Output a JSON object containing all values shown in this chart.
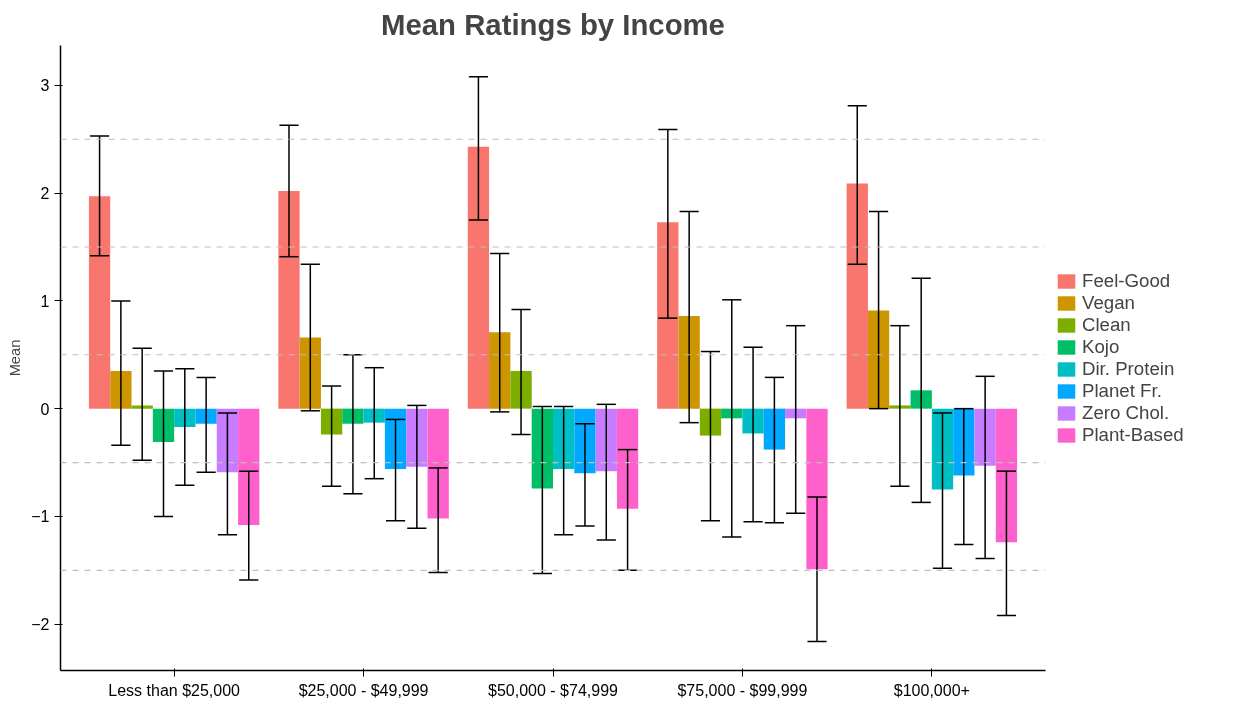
{
  "chart_data": {
    "type": "bar",
    "title": "Mean Ratings by Income",
    "ylabel": "Mean",
    "categories": [
      "Less than $25,000",
      "$25,000 - $49,999",
      "$50,000 - $74,999",
      "$75,000 - $99,999",
      "$100,000+"
    ],
    "ylim": [
      -2.43,
      3.37
    ],
    "yticks": [
      -2,
      -1,
      0,
      1,
      2,
      3
    ],
    "grid": false,
    "legend": "right",
    "ref_lines": [
      {
        "axis": "y",
        "value": -1.5,
        "color": "#bebebe",
        "line_style": "dashed"
      },
      {
        "axis": "y",
        "value": -0.5,
        "color": "#bebebe",
        "line_style": "dashed"
      },
      {
        "axis": "y",
        "value": 0.5,
        "color": "#bebebe",
        "line_style": "dashed"
      },
      {
        "axis": "y",
        "value": 1.5,
        "color": "#bebebe",
        "line_style": "dashed"
      },
      {
        "axis": "y",
        "value": 2.5,
        "color": "#bebebe",
        "line_style": "dashed"
      }
    ],
    "series": [
      {
        "name": "Feel-Good",
        "color": "#f8766d",
        "values": [
          1.97,
          2.02,
          2.43,
          1.73,
          2.09
        ],
        "errors": [
          [
            1.42,
            2.53
          ],
          [
            1.41,
            2.63
          ],
          [
            1.75,
            3.08
          ],
          [
            0.84,
            2.59
          ],
          [
            1.34,
            2.81
          ]
        ]
      },
      {
        "name": "Vegan",
        "color": "#cd9600",
        "values": [
          0.35,
          0.66,
          0.71,
          0.86,
          0.91
        ],
        "errors": [
          [
            -0.34,
            1.0
          ],
          [
            -0.02,
            1.34
          ],
          [
            -0.03,
            1.44
          ],
          [
            -0.13,
            1.83
          ],
          [
            0.0,
            1.83
          ]
        ]
      },
      {
        "name": "Clean",
        "color": "#7cae00",
        "values": [
          0.03,
          -0.24,
          0.35,
          -0.25,
          0.03
        ],
        "errors": [
          [
            -0.48,
            0.56
          ],
          [
            -0.72,
            0.21
          ],
          [
            -0.24,
            0.92
          ],
          [
            -1.04,
            0.53
          ],
          [
            -0.72,
            0.77
          ]
        ]
      },
      {
        "name": "Kojo",
        "color": "#00be67",
        "values": [
          -0.31,
          -0.14,
          -0.74,
          -0.09,
          0.17
        ],
        "errors": [
          [
            -1.0,
            0.35
          ],
          [
            -0.79,
            0.5
          ],
          [
            -1.53,
            0.02
          ],
          [
            -1.19,
            1.01
          ],
          [
            -0.87,
            1.21
          ]
        ]
      },
      {
        "name": "Dir. Protein",
        "color": "#00bfc4",
        "values": [
          -0.17,
          -0.13,
          -0.56,
          -0.23,
          -0.75
        ],
        "errors": [
          [
            -0.71,
            0.37
          ],
          [
            -0.65,
            0.38
          ],
          [
            -1.17,
            0.02
          ],
          [
            -1.05,
            0.57
          ],
          [
            -1.48,
            -0.04
          ]
        ]
      },
      {
        "name": "Planet Fr.",
        "color": "#00a9ff",
        "values": [
          -0.14,
          -0.56,
          -0.6,
          -0.38,
          -0.62
        ],
        "errors": [
          [
            -0.59,
            0.29
          ],
          [
            -1.04,
            -0.1
          ],
          [
            -1.09,
            -0.14
          ],
          [
            -1.06,
            0.29
          ],
          [
            -1.26,
            0.0
          ]
        ]
      },
      {
        "name": "Zero Chol.",
        "color": "#c77cff",
        "values": [
          -0.59,
          -0.54,
          -0.58,
          -0.09,
          -0.53
        ],
        "errors": [
          [
            -1.17,
            -0.04
          ],
          [
            -1.11,
            0.03
          ],
          [
            -1.22,
            0.04
          ],
          [
            -0.97,
            0.77
          ],
          [
            -1.39,
            0.3
          ]
        ]
      },
      {
        "name": "Plant-Based",
        "color": "#ff61cc",
        "values": [
          -1.08,
          -1.02,
          -0.93,
          -1.49,
          -1.24
        ],
        "errors": [
          [
            -1.59,
            -0.58
          ],
          [
            -1.52,
            -0.55
          ],
          [
            -1.5,
            -0.38
          ],
          [
            -2.16,
            -0.82
          ],
          [
            -1.92,
            -0.58
          ]
        ]
      }
    ]
  }
}
